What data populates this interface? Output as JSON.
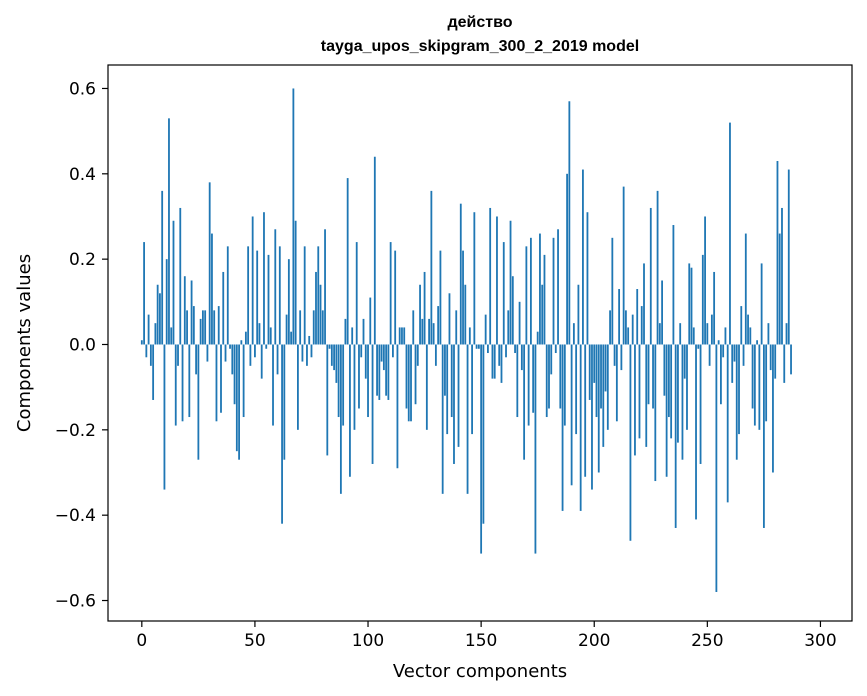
{
  "chart_data": {
    "type": "bar",
    "title": "действо",
    "subtitle": "tayga_upos_skipgram_300_2_2019 model",
    "xlabel": "Vector components",
    "ylabel": "Components values",
    "xlim": [
      -14.95,
      313.95
    ],
    "ylim": [
      -0.648,
      0.655
    ],
    "xticks": [
      0,
      50,
      100,
      150,
      200,
      250,
      300
    ],
    "yticks": [
      0.6,
      0.4,
      0.2,
      0.0,
      -0.2,
      -0.4,
      -0.6
    ],
    "ytick_labels": [
      "0.6",
      "0.4",
      "0.2",
      "0.0",
      "−0.2",
      "−0.4",
      "−0.6"
    ],
    "bar_color": "#1f77b4",
    "grid": false,
    "values": [
      0.01,
      0.24,
      -0.03,
      0.07,
      -0.05,
      -0.13,
      0.05,
      0.14,
      0.12,
      0.36,
      -0.34,
      0.2,
      0.53,
      0.04,
      0.29,
      -0.19,
      -0.05,
      0.32,
      -0.18,
      0.16,
      0.08,
      -0.17,
      0.15,
      0.09,
      -0.07,
      -0.27,
      0.06,
      0.08,
      0.08,
      -0.04,
      0.38,
      0.26,
      0.08,
      -0.18,
      0.09,
      -0.16,
      0.17,
      -0.04,
      0.23,
      -0.01,
      -0.07,
      -0.14,
      -0.25,
      -0.27,
      0.01,
      -0.17,
      0.03,
      0.23,
      -0.05,
      0.3,
      -0.03,
      0.22,
      0.05,
      -0.08,
      0.31,
      -0.01,
      0.21,
      0.04,
      -0.19,
      0.27,
      -0.07,
      0.23,
      -0.42,
      -0.27,
      0.07,
      0.2,
      0.03,
      0.6,
      0.29,
      -0.2,
      0.08,
      -0.04,
      0.23,
      -0.05,
      0.02,
      -0.03,
      0.08,
      0.17,
      0.23,
      0.14,
      0.08,
      0.27,
      -0.26,
      -0.01,
      -0.05,
      -0.06,
      -0.09,
      -0.17,
      -0.35,
      -0.19,
      0.06,
      0.39,
      -0.31,
      0.04,
      -0.2,
      0.24,
      -0.15,
      -0.03,
      0.06,
      -0.08,
      -0.17,
      0.11,
      -0.28,
      0.44,
      -0.12,
      -0.13,
      -0.04,
      -0.06,
      -0.12,
      -0.13,
      0.24,
      -0.03,
      0.22,
      -0.29,
      0.04,
      0.04,
      0.04,
      -0.15,
      -0.18,
      -0.18,
      0.08,
      -0.14,
      -0.05,
      0.14,
      0.06,
      0.17,
      -0.2,
      0.06,
      0.36,
      0.05,
      -0.05,
      0.09,
      0.22,
      -0.35,
      -0.12,
      -0.21,
      0.12,
      -0.17,
      -0.28,
      0.08,
      -0.24,
      0.33,
      0.22,
      0.14,
      -0.35,
      0.04,
      -0.21,
      0.31,
      -0.01,
      -0.01,
      -0.49,
      -0.42,
      0.07,
      -0.02,
      0.32,
      -0.08,
      -0.08,
      0.3,
      -0.05,
      -0.09,
      0.24,
      -0.03,
      0.08,
      0.29,
      0.16,
      -0.02,
      -0.17,
      0.1,
      -0.06,
      -0.27,
      0.23,
      -0.19,
      0.25,
      -0.16,
      -0.49,
      0.03,
      0.26,
      0.14,
      0.21,
      -0.17,
      -0.15,
      -0.07,
      0.25,
      -0.02,
      0.27,
      -0.15,
      -0.39,
      -0.19,
      0.4,
      0.57,
      -0.33,
      0.05,
      -0.21,
      0.14,
      -0.39,
      0.41,
      -0.31,
      0.31,
      -0.13,
      -0.34,
      -0.09,
      -0.17,
      -0.3,
      -0.15,
      -0.24,
      -0.11,
      -0.2,
      0.08,
      0.25,
      -0.05,
      -0.18,
      0.13,
      -0.06,
      0.37,
      0.08,
      0.04,
      -0.46,
      0.07,
      -0.26,
      0.13,
      -0.22,
      0.09,
      0.19,
      -0.24,
      -0.14,
      0.32,
      -0.15,
      -0.32,
      0.36,
      0.05,
      0.15,
      -0.12,
      -0.31,
      -0.17,
      -0.22,
      0.28,
      -0.43,
      -0.23,
      0.05,
      -0.27,
      -0.08,
      -0.2,
      0.19,
      0.18,
      0.04,
      -0.41,
      -0.01,
      -0.28,
      0.21,
      0.3,
      0.05,
      -0.05,
      0.07,
      0.17,
      -0.58,
      0.01,
      -0.14,
      -0.03,
      0.04,
      -0.37,
      0.52,
      -0.09,
      -0.04,
      -0.27,
      -0.21,
      0.09,
      -0.05,
      0.26,
      0.07,
      0.04,
      -0.15,
      -0.19,
      0.01,
      -0.2,
      0.19,
      -0.43,
      -0.18,
      0.05,
      -0.06,
      -0.3,
      -0.08,
      0.43,
      0.26,
      0.32,
      -0.09,
      0.05,
      0.41,
      -0.07
    ]
  }
}
